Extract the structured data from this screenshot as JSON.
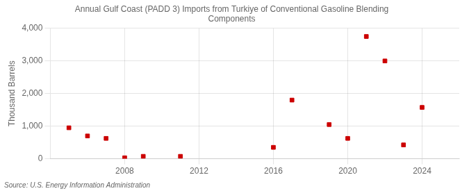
{
  "chart_data": {
    "type": "scatter",
    "title": "Annual Gulf Coast (PADD 3) Imports from Turkiye of Conventional Gasoline Blending\nComponents",
    "ylabel": "Thousand Barrels",
    "annotation": "Source: U.S. Energy Information Administration",
    "x": [
      2005,
      2006,
      2007,
      2008,
      2009,
      2011,
      2016,
      2017,
      2019,
      2020,
      2021,
      2022,
      2023,
      2024
    ],
    "values": [
      950,
      700,
      625,
      30,
      75,
      75,
      350,
      1800,
      1050,
      625,
      3750,
      3000,
      425,
      1575
    ],
    "color": "#cc0000",
    "marker": "square",
    "xlim": [
      2004,
      2026
    ],
    "xticks": [
      2008,
      2012,
      2016,
      2020,
      2024
    ],
    "ylim": [
      0,
      4000
    ],
    "yticks": [
      0,
      {
        "value": 1000,
        "label": "1,000"
      },
      {
        "value": 2000,
        "label": "2,000"
      },
      {
        "value": 3000,
        "label": "3,000"
      },
      {
        "value": 4000,
        "label": "4,000"
      }
    ],
    "grid": true
  }
}
